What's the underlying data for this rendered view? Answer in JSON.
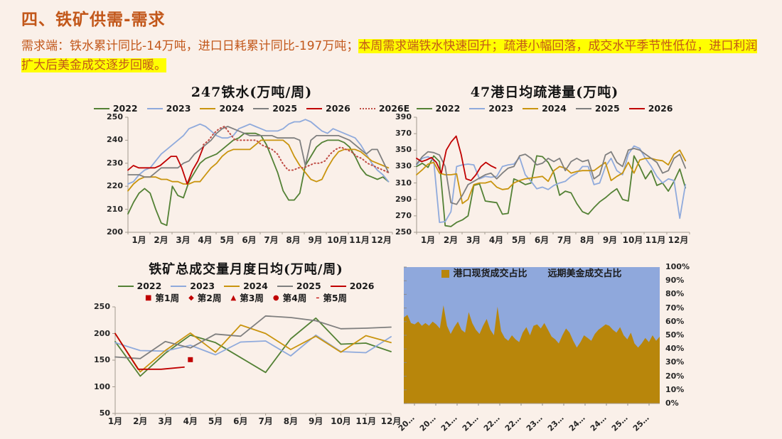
{
  "page": {
    "title": "四、铁矿供需-需求"
  },
  "summary": {
    "plain": "需求端：铁水累计同比-14万吨，进口日耗累计同比-197万吨；",
    "highlight": "本周需求端铁水快速回升；疏港小幅回落，成交水平季节性低位，进口利润扩大后美金成交逐步回暖。"
  },
  "colors": {
    "background": "#faf0e9",
    "accent_orange": "#c2571a",
    "highlight_yellow": "#ffff00",
    "series_green": "#538135",
    "series_blue": "#8faadc",
    "series_gold": "#c9940e",
    "series_gray": "#7f7f7f",
    "series_red": "#c00000",
    "series_red_dotted": "#bf4b43",
    "area_gold": "#b8860b",
    "area_blue": "#8fa8dc"
  },
  "chart_data": [
    {
      "id": "hot-metal",
      "type": "line",
      "title": "247铁水(万吨/周)",
      "ylim": [
        200,
        250
      ],
      "yticks": [
        200,
        210,
        220,
        230,
        240,
        250
      ],
      "x_labels": [
        "1月",
        "2月",
        "3月",
        "4月",
        "5月",
        "6月",
        "7月",
        "8月",
        "9月",
        "10月",
        "11月",
        "12月"
      ],
      "series": [
        {
          "name": "2022",
          "color": "#538135",
          "span": [
            0,
            0.985
          ],
          "values": [
            208,
            213,
            217,
            219,
            217,
            210,
            204,
            203,
            220,
            216,
            215,
            222,
            226,
            230,
            232,
            233,
            234,
            236,
            238,
            240,
            241,
            243,
            243,
            243,
            242,
            238,
            232,
            226,
            218,
            214,
            214,
            217,
            229,
            233,
            237,
            239,
            240,
            240,
            240,
            239,
            237,
            233,
            228,
            225,
            224,
            223,
            224,
            222
          ]
        },
        {
          "name": "2023",
          "color": "#8faadc",
          "span": [
            0,
            0.985
          ],
          "values": [
            221,
            222,
            225,
            227,
            228,
            231,
            234,
            236,
            238,
            240,
            242,
            245,
            246,
            247,
            246,
            244,
            242,
            241,
            241,
            242,
            245,
            246,
            247,
            246,
            245,
            244,
            244,
            244,
            245,
            247,
            248,
            248,
            249,
            248,
            246,
            244,
            243,
            245,
            244,
            243,
            242,
            241,
            238,
            234,
            230,
            227,
            225,
            222
          ]
        },
        {
          "name": "2024",
          "color": "#c9940e",
          "span": [
            0,
            0.985
          ],
          "values": [
            218,
            221,
            223,
            224,
            224,
            224,
            223,
            223,
            222,
            222,
            221,
            221,
            222,
            222,
            225,
            228,
            230,
            233,
            235,
            236,
            236,
            236,
            236,
            238,
            240,
            240,
            240,
            240,
            240,
            238,
            233,
            229,
            226,
            223,
            222,
            223,
            228,
            232,
            235,
            236,
            236,
            236,
            235,
            233,
            231,
            230,
            229,
            228
          ]
        },
        {
          "name": "2025",
          "color": "#7f7f7f",
          "span": [
            0,
            0.985
          ],
          "values": [
            225,
            225,
            225,
            224,
            224,
            226,
            228,
            228,
            228,
            228,
            230,
            231,
            234,
            236,
            238,
            240,
            243,
            245,
            246,
            245,
            244,
            243,
            242,
            242,
            242,
            242,
            242,
            241,
            241,
            241,
            241,
            240,
            229,
            240,
            242,
            242,
            242,
            242,
            242,
            241,
            240,
            238,
            236,
            234,
            236,
            236,
            231,
            226
          ]
        },
        {
          "name": "2026",
          "color": "#c00000",
          "span": [
            0,
            0.285
          ],
          "values": [
            227,
            229,
            228,
            228,
            228,
            228,
            229,
            231,
            233,
            233,
            228,
            221,
            227,
            231,
            237
          ]
        },
        {
          "name": "2026E",
          "color": "#bf4b43",
          "dash": true,
          "span": [
            0.285,
            0.985
          ],
          "values": [
            238,
            240,
            243,
            245,
            246,
            243,
            240,
            240,
            240,
            240,
            240,
            238,
            237,
            236,
            234,
            230,
            227,
            227,
            228,
            228,
            229,
            230,
            230,
            231,
            234,
            236,
            237,
            236,
            235,
            233,
            232,
            230,
            229,
            228,
            227,
            226
          ]
        }
      ]
    },
    {
      "id": "port-throughput",
      "type": "line",
      "title": "47港日均疏港量(万吨)",
      "ylim": [
        250,
        390
      ],
      "yticks": [
        250,
        270,
        290,
        310,
        330,
        350,
        370,
        390
      ],
      "x_labels": [
        "1月",
        "2月",
        "3月",
        "4月",
        "5月",
        "6月",
        "7月",
        "8月",
        "9月",
        "10月",
        "11月",
        "12月"
      ],
      "series": [
        {
          "name": "2022",
          "color": "#538135",
          "span": [
            0,
            0.985
          ],
          "values": [
            330,
            334,
            329,
            343,
            336,
            258,
            257,
            262,
            265,
            270,
            307,
            309,
            288,
            287,
            286,
            272,
            273,
            315,
            312,
            308,
            310,
            343,
            342,
            335,
            322,
            295,
            300,
            298,
            285,
            275,
            272,
            280,
            287,
            292,
            298,
            303,
            290,
            288,
            343,
            330,
            315,
            325,
            307,
            310,
            300,
            312,
            327,
            304
          ]
        },
        {
          "name": "2023",
          "color": "#8faadc",
          "span": [
            0,
            0.985
          ],
          "values": [
            332,
            340,
            342,
            337,
            262,
            263,
            275,
            330,
            332,
            333,
            332,
            315,
            318,
            317,
            318,
            330,
            332,
            333,
            341,
            320,
            312,
            303,
            305,
            302,
            307,
            310,
            312,
            318,
            322,
            330,
            330,
            308,
            310,
            330,
            340,
            325,
            320,
            345,
            355,
            352,
            340,
            330,
            318,
            310,
            315,
            313,
            267,
            308
          ]
        },
        {
          "name": "2024",
          "color": "#c9940e",
          "span": [
            0,
            0.985
          ],
          "values": [
            320,
            326,
            333,
            335,
            322,
            320,
            320,
            321,
            285,
            290,
            308,
            310,
            310,
            312,
            305,
            302,
            303,
            310,
            313,
            315,
            316,
            317,
            318,
            312,
            325,
            330,
            328,
            322,
            324,
            325,
            325,
            325,
            330,
            335,
            313,
            318,
            322,
            335,
            322,
            338,
            340,
            340,
            338,
            337,
            332,
            345,
            350,
            337
          ]
        },
        {
          "name": "2025",
          "color": "#7f7f7f",
          "span": [
            0,
            0.985
          ],
          "values": [
            333,
            342,
            348,
            347,
            344,
            330,
            286,
            284,
            295,
            308,
            312,
            316,
            320,
            322,
            315,
            322,
            328,
            330,
            343,
            345,
            340,
            332,
            334,
            340,
            336,
            340,
            325,
            336,
            340,
            336,
            338,
            315,
            320,
            344,
            348,
            335,
            330,
            350,
            352,
            350,
            345,
            340,
            335,
            322,
            325,
            340,
            345,
            328
          ]
        },
        {
          "name": "2026",
          "color": "#c00000",
          "span": [
            0,
            0.29
          ],
          "values": [
            340,
            336,
            338,
            341,
            335,
            322,
            350,
            360,
            367,
            345,
            315,
            313,
            320,
            330,
            335,
            331,
            328
          ]
        }
      ]
    },
    {
      "id": "total-volume",
      "type": "line",
      "title": "铁矿总成交量月度日均(万吨/周)",
      "ylim": [
        50,
        250
      ],
      "yticks": [
        50,
        100,
        150,
        200,
        250
      ],
      "x_labels": [
        "1月",
        "2月",
        "3月",
        "4月",
        "5月",
        "6月",
        "7月",
        "8月",
        "9月",
        "10月",
        "11月",
        "12月"
      ],
      "series": [
        {
          "name": "2022",
          "color": "#538135",
          "span": [
            0,
            1
          ],
          "values": [
            185,
            120,
            163,
            197,
            183,
            155,
            127,
            190,
            229,
            180,
            182,
            166
          ]
        },
        {
          "name": "2023",
          "color": "#8faadc",
          "span": [
            0,
            1
          ],
          "values": [
            183,
            168,
            167,
            178,
            160,
            184,
            186,
            158,
            197,
            166,
            164,
            194
          ]
        },
        {
          "name": "2024",
          "color": "#c9940e",
          "span": [
            0,
            1
          ],
          "values": [
            200,
            128,
            168,
            201,
            165,
            216,
            200,
            170,
            195,
            165,
            196,
            183
          ]
        },
        {
          "name": "2025",
          "color": "#7f7f7f",
          "span": [
            0,
            1
          ],
          "values": [
            156,
            153,
            185,
            173,
            199,
            195,
            233,
            230,
            224,
            209,
            210,
            212
          ]
        },
        {
          "name": "2026",
          "color": "#c00000",
          "span": [
            0,
            0.25
          ],
          "values": [
            200,
            133,
            133,
            137
          ]
        }
      ],
      "markers": [
        {
          "label": "第1周",
          "shape": "■"
        },
        {
          "label": "第2周",
          "shape": "◆"
        },
        {
          "label": "第3周",
          "shape": "▲"
        },
        {
          "label": "第4周",
          "shape": "●"
        },
        {
          "label": "第5周",
          "shape": "–"
        }
      ],
      "marker_points": [
        {
          "shape": "■",
          "x_frac": 0.2727,
          "y": 151
        }
      ]
    },
    {
      "id": "trade-share",
      "type": "area",
      "legend": [
        {
          "label": "港口现货成交占比",
          "color": "#b8860b"
        },
        {
          "label": "远期美金成交占比",
          "color": "#8fa8dc"
        }
      ],
      "ylim": [
        0,
        100
      ],
      "yticks": [
        0,
        10,
        20,
        30,
        40,
        50,
        60,
        70,
        80,
        90,
        100
      ],
      "ytick_suffix": "%",
      "x_labels": [
        "20…",
        "20…",
        "21…",
        "21…",
        "22…",
        "22…",
        "23…",
        "23…",
        "24…",
        "24…",
        "25…",
        "25…"
      ],
      "values": [
        63,
        65,
        59,
        58,
        60,
        57,
        59,
        57,
        60,
        58,
        55,
        72,
        57,
        51,
        56,
        60,
        54,
        52,
        67,
        59,
        54,
        51,
        57,
        62,
        54,
        50,
        71,
        53,
        48,
        46,
        50,
        47,
        45,
        52,
        56,
        50,
        57,
        58,
        55,
        59,
        54,
        49,
        47,
        44,
        50,
        55,
        52,
        46,
        41,
        45,
        50,
        48,
        46,
        51,
        54,
        56,
        58,
        57,
        54,
        52,
        56,
        50,
        47,
        52,
        44,
        41,
        44,
        48,
        45,
        50,
        46,
        49
      ]
    }
  ]
}
